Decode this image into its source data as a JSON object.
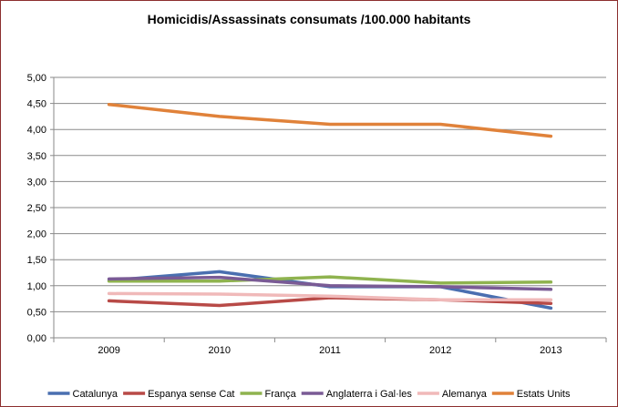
{
  "chart_data": {
    "type": "line",
    "title": "Homicidis/Assassinats consumats /100.000 habitants",
    "xlabel": "",
    "ylabel": "",
    "categories": [
      "2009",
      "2010",
      "2011",
      "2012",
      "2013"
    ],
    "y_ticks": [
      "0,00",
      "0,50",
      "1,00",
      "1,50",
      "2,00",
      "2,50",
      "3,00",
      "3,50",
      "4,00",
      "4,50",
      "5,00"
    ],
    "ylim": [
      0,
      5
    ],
    "grid": true,
    "legend_position": "bottom",
    "series": [
      {
        "name": "Catalunya",
        "color": "#4a6fb0",
        "values": [
          1.1,
          1.27,
          0.98,
          0.98,
          0.57
        ]
      },
      {
        "name": "Espanya sense Cat",
        "color": "#b84a47",
        "values": [
          0.71,
          0.62,
          0.77,
          0.73,
          0.66
        ]
      },
      {
        "name": "França",
        "color": "#8fb34f",
        "values": [
          1.09,
          1.09,
          1.17,
          1.05,
          1.07
        ]
      },
      {
        "name": "Anglaterra i Gal·les",
        "color": "#7a5b95",
        "values": [
          1.13,
          1.16,
          1.0,
          0.98,
          0.93
        ]
      },
      {
        "name": "Alemanya",
        "color": "#f0b9b9",
        "values": [
          0.85,
          0.84,
          0.8,
          0.73,
          0.73
        ]
      },
      {
        "name": "Estats Units",
        "color": "#e0823a",
        "values": [
          4.48,
          4.25,
          4.1,
          4.1,
          3.87
        ]
      }
    ]
  }
}
